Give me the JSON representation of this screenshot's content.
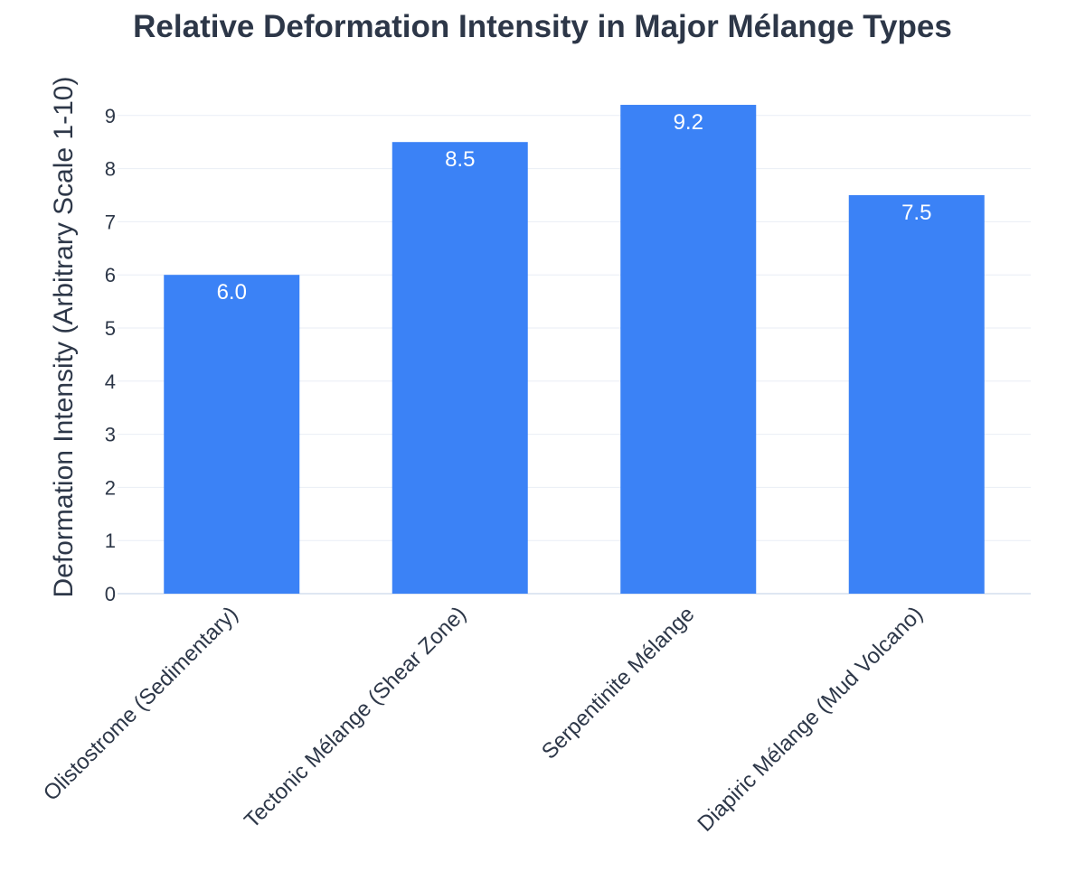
{
  "chart_data": {
    "type": "bar",
    "title": "Relative Deformation Intensity in Major Mélange Types",
    "xlabel": "",
    "ylabel": "Deformation Intensity (Arbitrary Scale 1-10)",
    "categories": [
      "Olistostrome (Sedimentary)",
      "Tectonic Mélange (Shear Zone)",
      "Serpentinite Mélange",
      "Diapiric Mélange (Mud Volcano)"
    ],
    "values": [
      6.0,
      8.5,
      9.2,
      7.5
    ],
    "value_labels": [
      "6.0",
      "8.5",
      "9.2",
      "7.5"
    ],
    "yticks": [
      0,
      1,
      2,
      3,
      4,
      5,
      6,
      7,
      8,
      9
    ],
    "ylim": [
      0,
      9.7
    ],
    "grid": true,
    "legend": false,
    "colors": {
      "bar": "#3b82f6",
      "grid": "#e9eef5",
      "text": "#2d3748",
      "bar_label": "#ffffff"
    }
  }
}
